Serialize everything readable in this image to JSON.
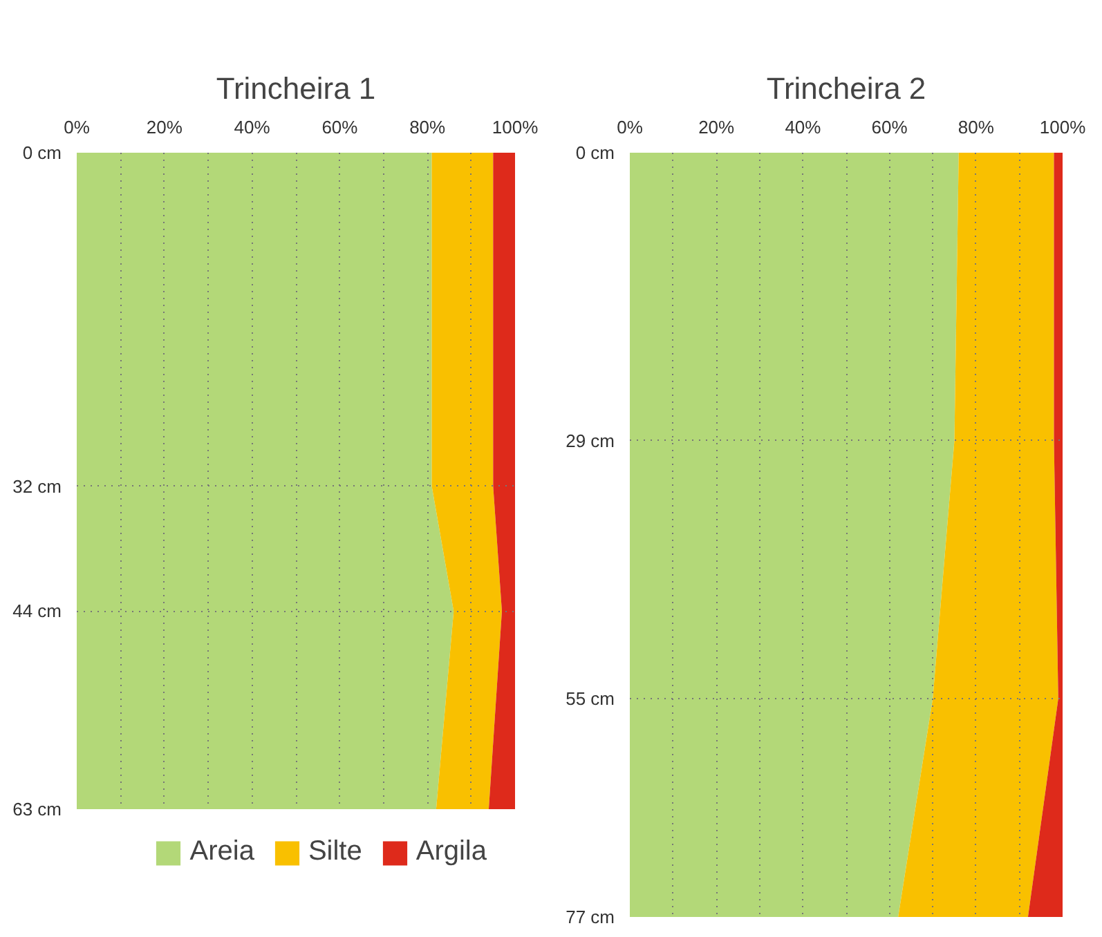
{
  "chart_data": [
    {
      "type": "area",
      "title": "Trincheira 1",
      "orientation": "horizontal",
      "stacked": true,
      "grid": true,
      "legend": "bottom",
      "x": [
        0,
        32,
        44,
        63
      ],
      "xlim": [
        0,
        100
      ],
      "xticks": [
        {
          "value": 0,
          "label": "0%"
        },
        {
          "value": 10,
          "label": null
        },
        {
          "value": 20,
          "label": "20%"
        },
        {
          "value": 30,
          "label": null
        },
        {
          "value": 40,
          "label": "40%"
        },
        {
          "value": 50,
          "label": null
        },
        {
          "value": 60,
          "label": "60%"
        },
        {
          "value": 70,
          "label": null
        },
        {
          "value": 80,
          "label": "80%"
        },
        {
          "value": 90,
          "label": null
        },
        {
          "value": 100,
          "label": "100%"
        }
      ],
      "ylim": [
        63,
        0
      ],
      "yticks": [
        {
          "value": 0,
          "label": "0 cm"
        },
        {
          "value": 32,
          "label": "32 cm"
        },
        {
          "value": 44,
          "label": "44 cm"
        },
        {
          "value": 63,
          "label": "63 cm"
        }
      ],
      "series": [
        {
          "name": "Areia",
          "color": "#b3d878",
          "values": [
            81,
            81,
            86,
            82
          ]
        },
        {
          "name": "Silte",
          "color": "#f9c000",
          "values": [
            14,
            14,
            11,
            12
          ]
        },
        {
          "name": "Argila",
          "color": "#de2a1b",
          "values": [
            5,
            5,
            3,
            6
          ]
        }
      ]
    },
    {
      "type": "area",
      "title": "Trincheira 2",
      "orientation": "horizontal",
      "stacked": true,
      "grid": true,
      "x": [
        0,
        29,
        55,
        77
      ],
      "xlim": [
        0,
        100
      ],
      "xticks": [
        {
          "value": 0,
          "label": "0%"
        },
        {
          "value": 10,
          "label": null
        },
        {
          "value": 20,
          "label": "20%"
        },
        {
          "value": 30,
          "label": null
        },
        {
          "value": 40,
          "label": "40%"
        },
        {
          "value": 50,
          "label": null
        },
        {
          "value": 60,
          "label": "60%"
        },
        {
          "value": 70,
          "label": null
        },
        {
          "value": 80,
          "label": "80%"
        },
        {
          "value": 90,
          "label": null
        },
        {
          "value": 100,
          "label": "100%"
        }
      ],
      "ylim": [
        77,
        0
      ],
      "yticks": [
        {
          "value": 0,
          "label": "0 cm"
        },
        {
          "value": 29,
          "label": "29 cm"
        },
        {
          "value": 55,
          "label": "55 cm"
        },
        {
          "value": 77,
          "label": "77 cm"
        }
      ],
      "series": [
        {
          "color": "#b3d878",
          "values": [
            76,
            75,
            70,
            62
          ]
        },
        {
          "color": "#f9c000",
          "values": [
            22,
            23,
            29,
            30
          ]
        },
        {
          "color": "#de2a1b",
          "values": [
            2,
            2,
            1,
            8
          ]
        }
      ]
    }
  ]
}
